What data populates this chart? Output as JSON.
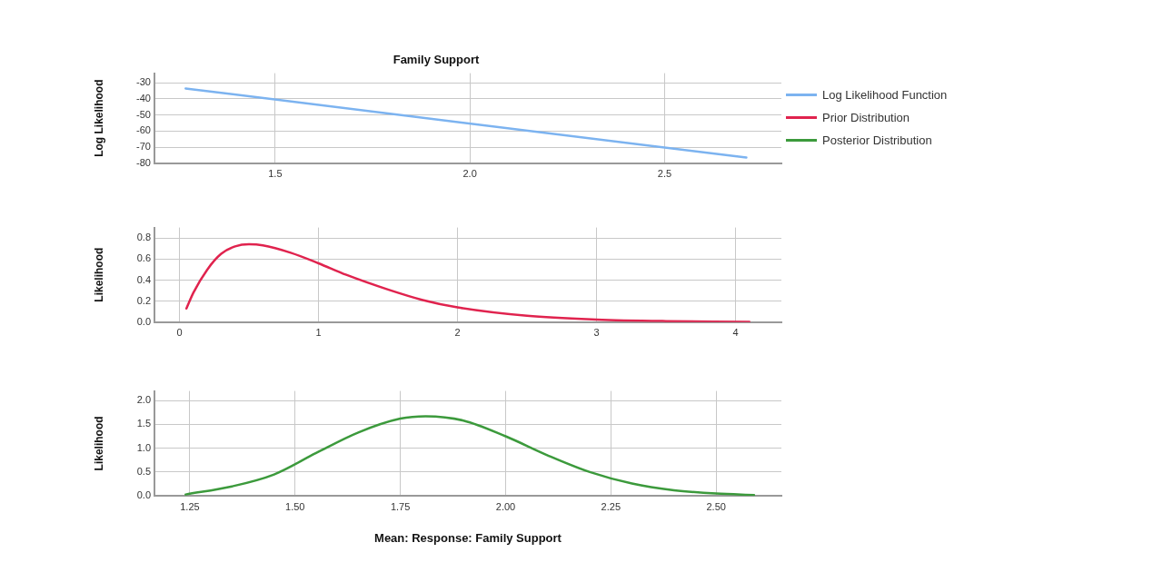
{
  "chart_data": [
    {
      "type": "line",
      "title": "Family Support",
      "ylabel": "Log Likelihood",
      "legend": "right",
      "grid": true,
      "marker": "none",
      "line_style": "solid",
      "xlim": [
        1.19,
        2.8
      ],
      "xticks": [
        {
          "value": 1.5,
          "label": "1.5"
        },
        {
          "value": 2,
          "label": "2.0"
        },
        {
          "value": 2.5,
          "label": "2.5"
        }
      ],
      "ylim": [
        -80,
        -24
      ],
      "yticks": [
        -80,
        -70,
        -60,
        -50,
        -40,
        -30
      ],
      "series": [
        {
          "name": "Log Likelihood Function",
          "color": "#7cb3f0",
          "x": [
            1.27,
            2.71
          ],
          "values": [
            -33.5,
            -76.5
          ]
        }
      ]
    },
    {
      "type": "line",
      "ylabel": "Likelihood",
      "legend": "right",
      "grid": true,
      "marker": "none",
      "line_style": "solid",
      "xlim": [
        -0.18,
        4.33
      ],
      "xticks": [
        0,
        1,
        2,
        3,
        4
      ],
      "ylim": [
        0,
        0.9
      ],
      "yticks": [
        {
          "value": 0,
          "label": "0.0"
        },
        0.2,
        0.4,
        0.6,
        0.8
      ],
      "series": [
        {
          "name": "Prior Distribution",
          "color": "#e0234e",
          "x": [
            0.05,
            0.1,
            0.2,
            0.3,
            0.4,
            0.5,
            0.6,
            0.8,
            1.0,
            1.2,
            1.5,
            1.75,
            2.0,
            2.5,
            3.0,
            3.5,
            4.1
          ],
          "values": [
            0.13,
            0.28,
            0.5,
            0.65,
            0.72,
            0.74,
            0.73,
            0.66,
            0.56,
            0.45,
            0.31,
            0.21,
            0.14,
            0.06,
            0.025,
            0.01,
            0.003
          ]
        }
      ]
    },
    {
      "type": "line",
      "ylabel": "Likelihood",
      "xlabel": "Mean: Response: Family Support",
      "legend": "right",
      "grid": true,
      "marker": "none",
      "line_style": "solid",
      "xlim": [
        1.166,
        2.655
      ],
      "xticks": [
        1.25,
        {
          "value": 1.5,
          "label": "1.50"
        },
        1.75,
        {
          "value": 2,
          "label": "2.00"
        },
        2.25,
        {
          "value": 2.5,
          "label": "2.50"
        }
      ],
      "ylim": [
        0,
        2.2
      ],
      "yticks": [
        {
          "value": 0,
          "label": "0.0"
        },
        0.5,
        {
          "value": 1,
          "label": "1.0"
        },
        1.5,
        {
          "value": 2,
          "label": "2.0"
        }
      ],
      "series": [
        {
          "name": "Posterior Distribution",
          "color": "#3c9a3c",
          "x": [
            1.24,
            1.35,
            1.45,
            1.55,
            1.65,
            1.75,
            1.81,
            1.9,
            2.0,
            2.1,
            2.2,
            2.3,
            2.4,
            2.5,
            2.59
          ],
          "values": [
            0.03,
            0.2,
            0.45,
            0.9,
            1.33,
            1.62,
            1.67,
            1.58,
            1.25,
            0.85,
            0.5,
            0.26,
            0.12,
            0.05,
            0.02
          ]
        }
      ]
    }
  ]
}
